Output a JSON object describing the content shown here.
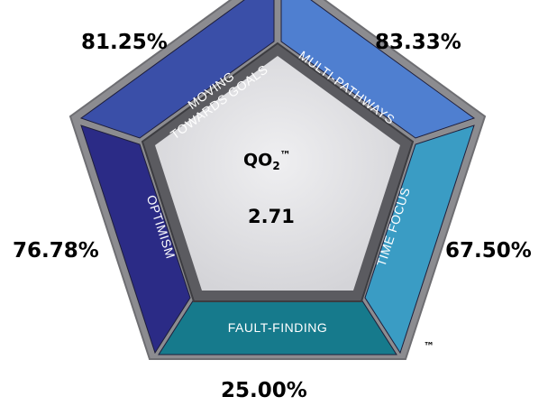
{
  "segments": {
    "moving_towards_goals": {
      "line1": "MOVING",
      "line2": "TOWARDS GOALS",
      "percent": "81.25%",
      "color": "#3a4fa8"
    },
    "multi_pathways": {
      "label": "MULTI-PATHWAYS",
      "percent": "83.33%",
      "color": "#4f7fd0"
    },
    "time_focus": {
      "label": "TIME FOCUS",
      "percent": "67.50%",
      "color": "#3a9cc4"
    },
    "fault_finding": {
      "label": "FAULT-FINDING",
      "percent": "25.00%",
      "color": "#167a8c"
    },
    "optimism": {
      "label": "OPTIMISM",
      "percent": "76.78%",
      "color": "#2b2b86"
    }
  },
  "center": {
    "title_main": "QO",
    "title_sub": "2",
    "title_sup": "™",
    "value": "2.71",
    "fill": "#e3e3e6"
  },
  "trademark": "™"
}
